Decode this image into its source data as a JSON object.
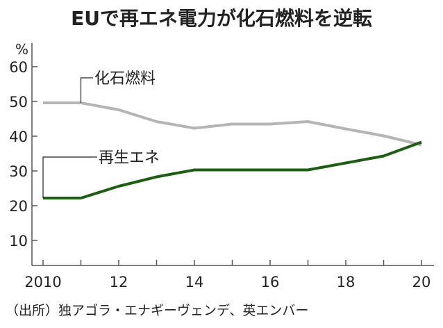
{
  "chart_data": {
    "type": "line",
    "title": "EUで再エネ電力が化石燃料を逆転",
    "ylabel": "%",
    "xlabel": "",
    "x": [
      2010,
      2011,
      2012,
      2013,
      2014,
      2015,
      2016,
      2017,
      2018,
      2019,
      2020
    ],
    "xtick_labels": [
      "2010",
      "12",
      "14",
      "16",
      "18",
      "20"
    ],
    "xtick_values": [
      2010,
      2012,
      2014,
      2016,
      2018,
      2020
    ],
    "ytick_values": [
      10,
      20,
      30,
      40,
      50,
      60
    ],
    "ytick_labels": [
      "10",
      "20",
      "30",
      "40",
      "50",
      "60"
    ],
    "xlim": [
      2009.7,
      2020.3
    ],
    "ylim": [
      2.8,
      68
    ],
    "grid": false,
    "series": [
      {
        "name": "化石燃料",
        "color": "#b5b5b8",
        "values": [
          49.6,
          49.6,
          47.6,
          44.2,
          42.3,
          43.5,
          43.5,
          44.2,
          42.1,
          40.1,
          37.5
        ]
      },
      {
        "name": "再生エネ",
        "color": "#1e5e14",
        "values": [
          22.2,
          22.2,
          25.6,
          28.3,
          30.3,
          30.3,
          30.3,
          30.3,
          32.3,
          34.3,
          38.3
        ]
      }
    ],
    "source": "（出所）独アゴラ・エナギーヴェンデ、英エンバー"
  }
}
